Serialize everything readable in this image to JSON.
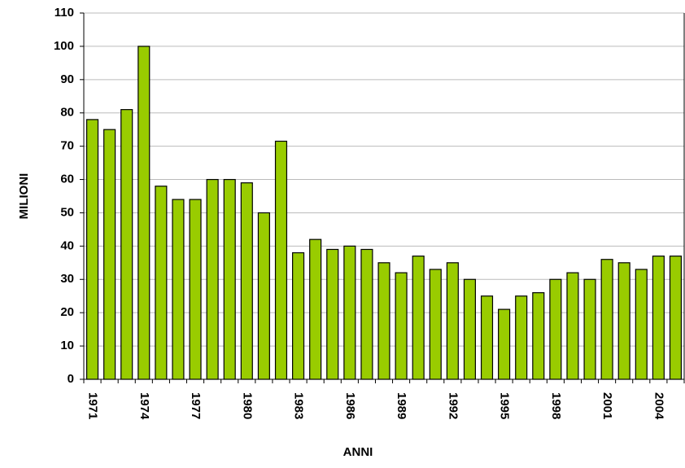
{
  "chart_data": {
    "type": "bar",
    "x_label": "ANNI",
    "y_label": "MILIONI",
    "categories": [
      "1971",
      null,
      null,
      "1974",
      null,
      null,
      "1977",
      null,
      null,
      "1980",
      null,
      null,
      "1983",
      null,
      null,
      "1986",
      null,
      null,
      "1989",
      null,
      null,
      "1992",
      null,
      null,
      "1995",
      null,
      null,
      "1998",
      null,
      null,
      "2001",
      null,
      null,
      "2004",
      null
    ],
    "values": [
      78,
      75,
      81,
      100,
      58,
      54,
      54,
      60,
      60,
      59,
      50,
      71.5,
      38,
      42,
      39,
      40,
      39,
      35,
      32,
      37,
      33,
      35,
      30,
      25,
      21,
      25,
      26,
      30,
      32,
      30,
      36,
      35,
      33,
      37,
      37
    ],
    "color": "#99cc00",
    "ylim": [
      0,
      110
    ],
    "yticks": [
      0,
      10,
      20,
      30,
      40,
      50,
      60,
      70,
      80,
      90,
      100,
      110
    ],
    "grid": true
  }
}
